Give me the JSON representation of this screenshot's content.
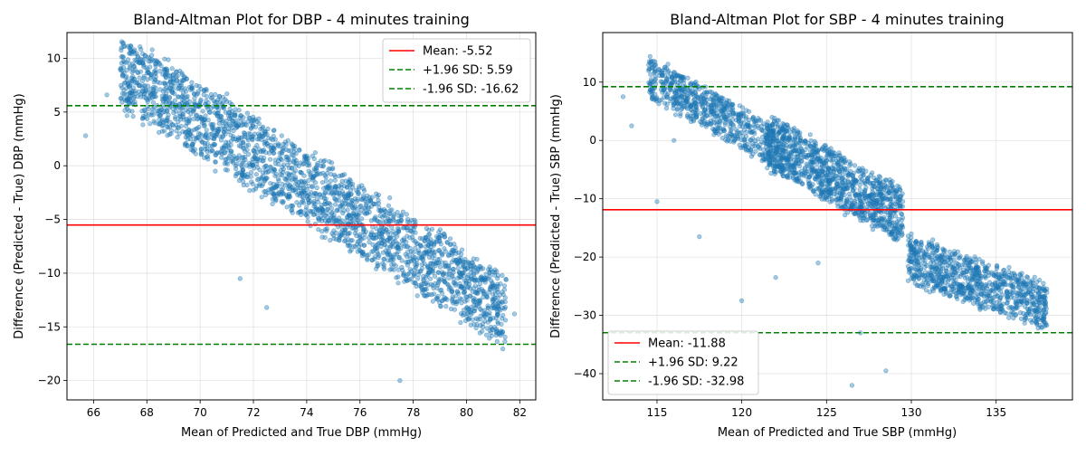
{
  "chart_data": [
    {
      "type": "scatter",
      "title": "Bland-Altman Plot for DBP - 4 minutes training",
      "xlabel": "Mean of Predicted and True DBP (mmHg)",
      "ylabel": "Difference (Predicted - True) DBP (mmHg)",
      "xlim": [
        65.0,
        82.6
      ],
      "ylim": [
        -21.8,
        12.4
      ],
      "xticks": [
        66,
        68,
        70,
        72,
        74,
        76,
        78,
        80,
        82
      ],
      "yticks": [
        -20,
        -15,
        -10,
        -5,
        0,
        5,
        10
      ],
      "grid": true,
      "legend_position": "top-right",
      "point_color": "#1f77b4",
      "lines": [
        {
          "label": "Mean: -5.52",
          "value": -5.52,
          "color": "#ff0000",
          "style": "solid"
        },
        {
          "label": "+1.96 SD: 5.59",
          "value": 5.59,
          "color": "#008000",
          "style": "dashed"
        },
        {
          "label": "-1.96 SD: -16.62",
          "value": -16.62,
          "color": "#008000",
          "style": "dashed"
        }
      ],
      "clusters": [
        {
          "x_range": [
            67.0,
            81.5
          ],
          "slope": -1.55,
          "x0": 69,
          "y0": 5.8,
          "spread": 3.2,
          "n": 2400
        }
      ],
      "outliers": [
        [
          65.7,
          2.8
        ],
        [
          66.5,
          6.6
        ],
        [
          67.2,
          8.2
        ],
        [
          68.2,
          10.8
        ],
        [
          71.5,
          -10.5
        ],
        [
          72.5,
          -13.2
        ],
        [
          81.8,
          -13.8
        ],
        [
          77.5,
          -20.0
        ]
      ]
    },
    {
      "type": "scatter",
      "title": "Bland-Altman Plot for SBP - 4 minutes training",
      "xlabel": "Mean of Predicted and True SBP (mmHg)",
      "ylabel": "Difference (Predicted - True) SBP (mmHg)",
      "xlim": [
        111.8,
        139.5
      ],
      "ylim": [
        -44.5,
        18.5
      ],
      "xticks": [
        115,
        120,
        125,
        130,
        135
      ],
      "yticks": [
        -40,
        -30,
        -20,
        -10,
        0,
        10
      ],
      "grid": true,
      "legend_position": "bottom-left",
      "point_color": "#1f77b4",
      "lines": [
        {
          "label": "Mean: -11.88",
          "value": -11.88,
          "color": "#ff0000",
          "style": "solid"
        },
        {
          "label": "+1.96 SD: 9.22",
          "value": 9.22,
          "color": "#008000",
          "style": "dashed"
        },
        {
          "label": "-1.96 SD: -32.98",
          "value": -32.98,
          "color": "#008000",
          "style": "dashed"
        }
      ],
      "clusters": [
        {
          "x_range": [
            114.5,
            122.5
          ],
          "slope": -1.6,
          "x0": 116,
          "y0": 8.5,
          "spread": 3.5,
          "n": 700
        },
        {
          "x_range": [
            121.5,
            129.5
          ],
          "slope": -1.6,
          "x0": 123,
          "y0": -2.5,
          "spread": 4.5,
          "n": 1100
        },
        {
          "x_range": [
            129.8,
            138.0
          ],
          "slope": -1.0,
          "x0": 131,
          "y0": -21.5,
          "spread": 4.0,
          "n": 900
        }
      ],
      "outliers": [
        [
          113.0,
          7.5
        ],
        [
          113.5,
          2.5
        ],
        [
          115.0,
          -10.5
        ],
        [
          116.0,
          0.0
        ],
        [
          117.5,
          -16.5
        ],
        [
          120.0,
          -27.5
        ],
        [
          122.0,
          -23.5
        ],
        [
          124.5,
          -21.0
        ],
        [
          127.0,
          -33.0
        ],
        [
          128.5,
          -39.5
        ],
        [
          130.0,
          -16.0
        ],
        [
          126.5,
          -42.0
        ]
      ]
    }
  ]
}
